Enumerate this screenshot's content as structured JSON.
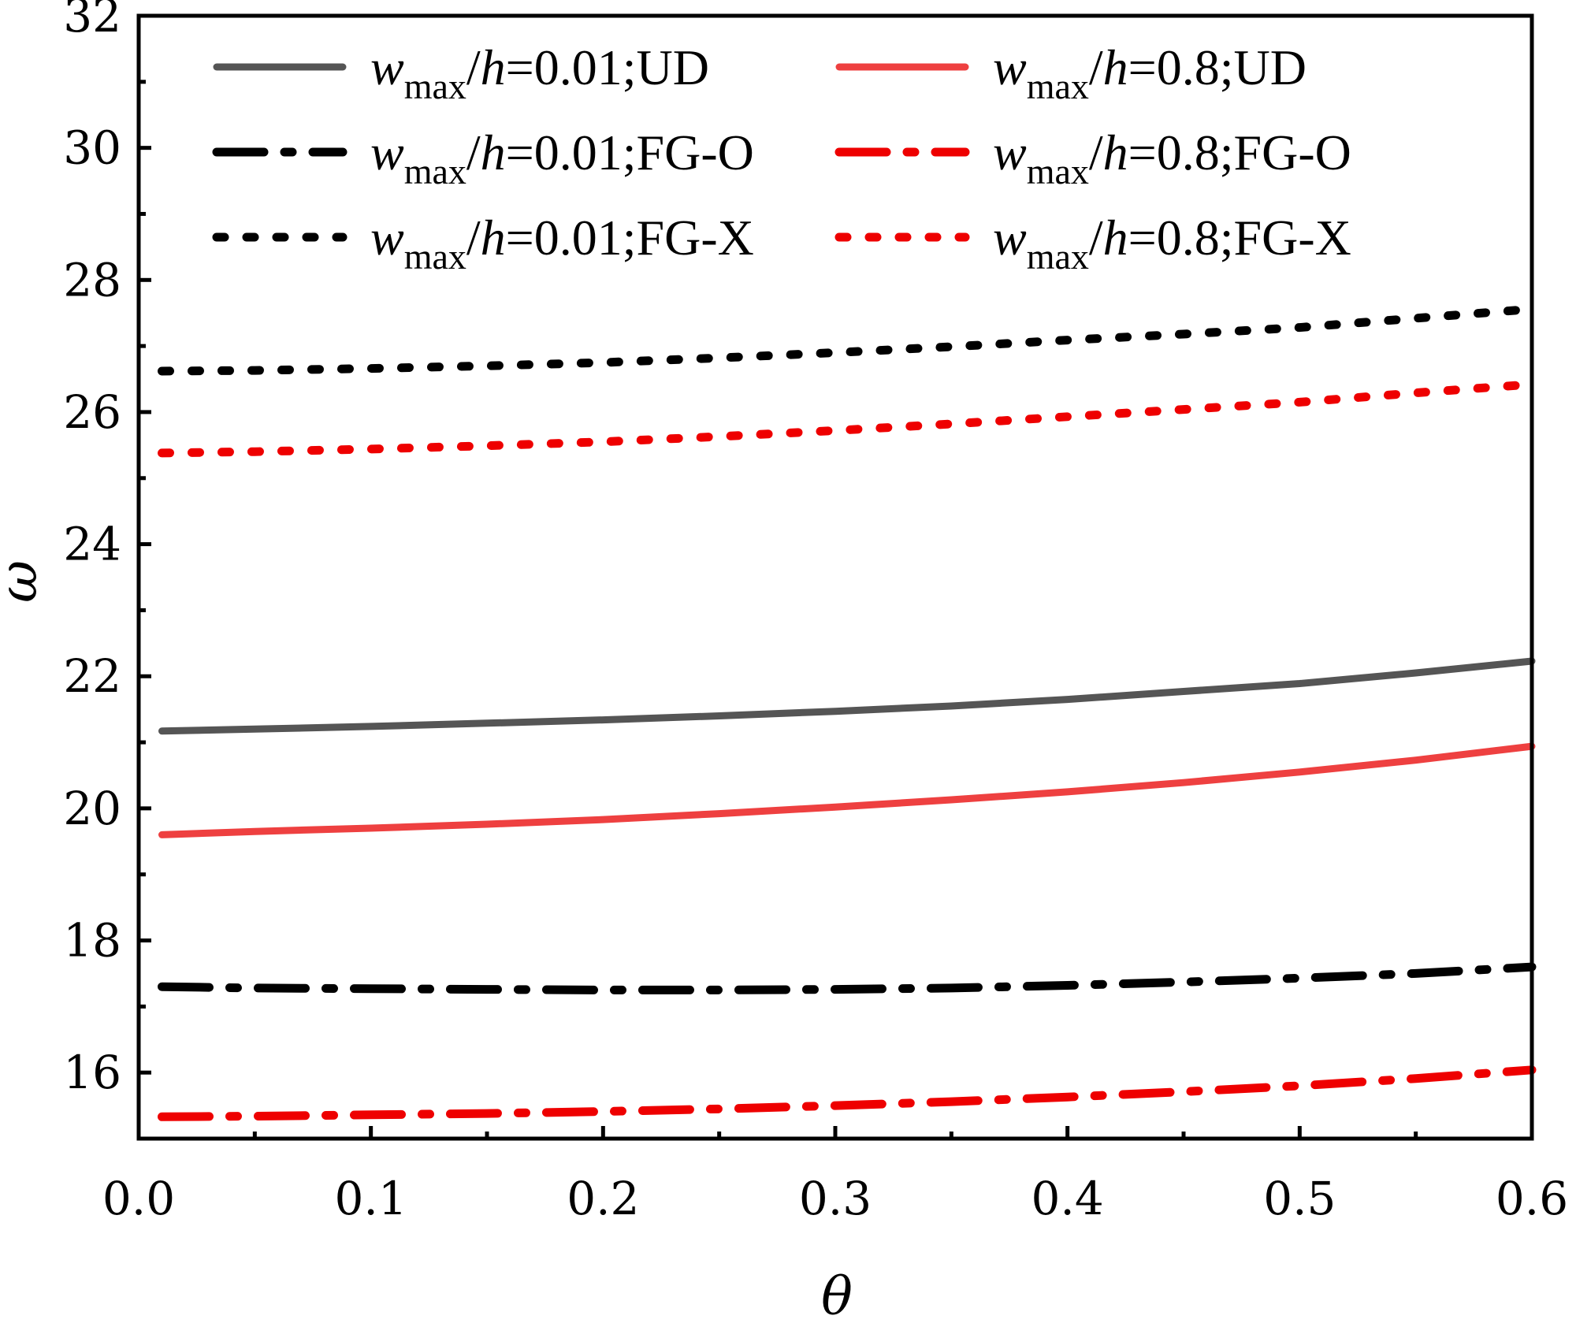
{
  "chart_data": {
    "type": "line",
    "title": "",
    "xlabel": "θ",
    "ylabel": "ω",
    "xlim": [
      0.0,
      0.6
    ],
    "ylim": [
      15,
      32
    ],
    "x_ticks": [
      "0.0",
      "0.1",
      "0.2",
      "0.3",
      "0.4",
      "0.5",
      "0.6"
    ],
    "y_ticks": [
      "16",
      "18",
      "20",
      "22",
      "24",
      "26",
      "28",
      "30",
      "32"
    ],
    "legend_position": "top",
    "legend_columns": 2,
    "x": [
      0.01,
      0.05,
      0.1,
      0.15,
      0.2,
      0.25,
      0.3,
      0.35,
      0.4,
      0.45,
      0.5,
      0.55,
      0.6
    ],
    "series": [
      {
        "name": "wmax/h=0.01;UD",
        "legend": {
          "w": "w",
          "sub": "max",
          "slash": "/",
          "h": "h",
          "rest": "=0.01;UD"
        },
        "color": "#555555",
        "style": "solid",
        "values": [
          21.17,
          21.2,
          21.24,
          21.29,
          21.34,
          21.4,
          21.47,
          21.55,
          21.65,
          21.77,
          21.89,
          22.05,
          22.23
        ]
      },
      {
        "name": "wmax/h=0.8;UD",
        "legend": {
          "w": "w",
          "sub": "max",
          "slash": "/",
          "h": "h",
          "rest": "=0.8;UD"
        },
        "color": "#ee4040",
        "style": "solid",
        "values": [
          19.6,
          19.65,
          19.7,
          19.76,
          19.83,
          19.92,
          20.02,
          20.13,
          20.25,
          20.39,
          20.55,
          20.73,
          20.94
        ]
      },
      {
        "name": "wmax/h=0.01;FG-O",
        "legend": {
          "w": "w",
          "sub": "max",
          "slash": "/",
          "h": "h",
          "rest": "=0.01;FG-O"
        },
        "color": "#000000",
        "style": "dash-dot",
        "values": [
          17.3,
          17.28,
          17.27,
          17.26,
          17.25,
          17.25,
          17.26,
          17.28,
          17.32,
          17.37,
          17.43,
          17.5,
          17.6
        ]
      },
      {
        "name": "wmax/h=0.8;FG-O",
        "legend": {
          "w": "w",
          "sub": "max",
          "slash": "/",
          "h": "h",
          "rest": "=0.8;FG-O"
        },
        "color": "#ee0000",
        "style": "dash-dot",
        "values": [
          15.33,
          15.34,
          15.36,
          15.38,
          15.41,
          15.45,
          15.5,
          15.56,
          15.63,
          15.71,
          15.8,
          15.91,
          16.04
        ]
      },
      {
        "name": "wmax/h=0.01;FG-X",
        "legend": {
          "w": "w",
          "sub": "max",
          "slash": "/",
          "h": "h",
          "rest": "=0.01;FG-X"
        },
        "color": "#000000",
        "style": "dotted",
        "values": [
          26.62,
          26.63,
          26.66,
          26.7,
          26.75,
          26.82,
          26.9,
          26.99,
          27.09,
          27.18,
          27.28,
          27.42,
          27.56
        ]
      },
      {
        "name": "wmax/h=0.8;FG-X",
        "legend": {
          "w": "w",
          "sub": "max",
          "slash": "/",
          "h": "h",
          "rest": "=0.8;FG-X"
        },
        "color": "#ee0000",
        "style": "dotted",
        "values": [
          25.38,
          25.4,
          25.44,
          25.49,
          25.55,
          25.63,
          25.72,
          25.82,
          25.93,
          26.04,
          26.15,
          26.29,
          26.42
        ]
      }
    ]
  }
}
